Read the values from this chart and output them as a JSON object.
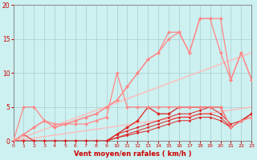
{
  "bg_color": "#cdf0f0",
  "grid_color": "#aacccc",
  "xlabel": "Vent moyen/en rafales ( km/h )",
  "xlabel_color": "#cc0000",
  "tick_color": "#cc0000",
  "xlim": [
    0,
    23
  ],
  "ylim": [
    0,
    20
  ],
  "xticks": [
    0,
    1,
    2,
    3,
    4,
    5,
    6,
    7,
    8,
    9,
    10,
    11,
    12,
    13,
    14,
    15,
    16,
    17,
    18,
    19,
    20,
    21,
    22,
    23
  ],
  "yticks": [
    0,
    5,
    10,
    15,
    20
  ],
  "series": [
    {
      "x": [
        0,
        1,
        2,
        3,
        4,
        5,
        6,
        7,
        8,
        9,
        10,
        11,
        12,
        13,
        14,
        15,
        16,
        17,
        18,
        19,
        20,
        21,
        22,
        23
      ],
      "y": [
        0,
        1,
        0,
        0,
        0,
        0,
        0,
        0,
        0,
        0,
        0.5,
        0.8,
        1.2,
        1.5,
        2,
        2.5,
        3,
        3,
        3.5,
        3.5,
        3,
        2,
        3,
        3.5
      ],
      "color": "#dd2222",
      "lw": 0.7,
      "marker": "D",
      "ms": 1.5
    },
    {
      "x": [
        0,
        1,
        2,
        3,
        4,
        5,
        6,
        7,
        8,
        9,
        10,
        11,
        12,
        13,
        14,
        15,
        16,
        17,
        18,
        19,
        20,
        21,
        22,
        23
      ],
      "y": [
        0,
        0,
        0,
        0,
        0,
        0,
        0,
        0,
        0,
        0,
        0.5,
        1,
        1.5,
        2,
        2.5,
        3,
        3.5,
        3.5,
        4,
        4,
        3.5,
        2,
        3,
        4
      ],
      "color": "#dd2222",
      "lw": 0.7,
      "marker": "D",
      "ms": 1.5
    },
    {
      "x": [
        0,
        1,
        2,
        3,
        4,
        5,
        6,
        7,
        8,
        9,
        10,
        11,
        12,
        13,
        14,
        15,
        16,
        17,
        18,
        19,
        20,
        21,
        22,
        23
      ],
      "y": [
        0,
        0,
        0,
        0,
        0,
        0,
        0,
        0,
        0,
        0,
        1,
        1.5,
        2,
        2.5,
        3,
        3.5,
        4,
        4,
        4.5,
        5,
        4,
        2.5,
        3,
        4
      ],
      "color": "#dd2222",
      "lw": 0.7,
      "marker": "D",
      "ms": 1.5
    },
    {
      "x": [
        0,
        1,
        2,
        3,
        4,
        5,
        6,
        7,
        8,
        9,
        10,
        11,
        12,
        13,
        14,
        15,
        16,
        17,
        18,
        19,
        20,
        21,
        22,
        23
      ],
      "y": [
        0,
        0,
        0,
        0,
        0,
        0,
        0,
        0,
        0,
        0,
        1,
        2,
        3,
        5,
        4,
        4,
        5,
        5,
        5,
        5,
        5,
        2,
        3,
        4
      ],
      "color": "#dd2222",
      "lw": 0.9,
      "marker": "D",
      "ms": 2
    },
    {
      "x": [
        0,
        1,
        2,
        3,
        4,
        5,
        6,
        7,
        8,
        9,
        10,
        11,
        12,
        13,
        14,
        15,
        16,
        17,
        18,
        19,
        20,
        21,
        22,
        23
      ],
      "y": [
        0,
        5,
        5,
        3,
        2.5,
        2.5,
        2.5,
        2.5,
        3,
        3.5,
        10,
        5,
        5,
        5,
        5,
        5,
        5,
        5,
        5,
        5,
        5,
        2,
        3,
        3.5
      ],
      "color": "#ff8888",
      "lw": 0.9,
      "marker": "D",
      "ms": 2
    },
    {
      "x": [
        0,
        1,
        2,
        3,
        4,
        5,
        6,
        7,
        8,
        9,
        10,
        11,
        12,
        13,
        14,
        15,
        16,
        17,
        18,
        19,
        20,
        21,
        22,
        23
      ],
      "y": [
        0,
        1,
        2,
        3,
        2,
        2.5,
        3,
        3.5,
        4,
        5,
        6,
        8,
        10,
        12,
        13,
        16,
        16,
        13,
        18,
        18,
        18,
        9,
        13,
        9
      ],
      "color": "#ff8888",
      "lw": 0.9,
      "marker": "D",
      "ms": 2
    },
    {
      "x": [
        0,
        1,
        2,
        3,
        4,
        5,
        6,
        7,
        8,
        9,
        10,
        11,
        12,
        13,
        14,
        15,
        16,
        17,
        18,
        19,
        20,
        21,
        22,
        23
      ],
      "y": [
        0,
        1,
        2,
        3,
        2,
        2.5,
        3,
        3.5,
        4,
        5,
        6,
        8,
        10,
        12,
        13,
        15,
        16,
        13,
        18,
        18,
        13,
        9,
        13,
        9
      ],
      "color": "#ff8888",
      "lw": 0.9,
      "marker": "D",
      "ms": 2
    },
    {
      "x": [
        0,
        23
      ],
      "y": [
        0,
        13
      ],
      "color": "#ffbbbb",
      "lw": 1.0,
      "marker": null,
      "ms": 0
    },
    {
      "x": [
        0,
        23
      ],
      "y": [
        0,
        5
      ],
      "color": "#ffbbbb",
      "lw": 1.0,
      "marker": null,
      "ms": 0
    }
  ]
}
